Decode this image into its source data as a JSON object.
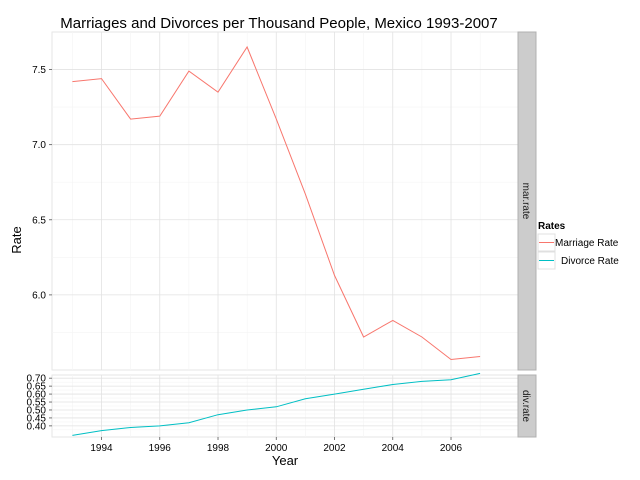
{
  "chart_data": {
    "type": "line",
    "title": "Marriages and Divorces per Thousand People, Mexico 1993-2007",
    "xlabel": "Year",
    "ylabel": "Rate",
    "x": [
      1993,
      1994,
      1995,
      1996,
      1997,
      1998,
      1999,
      2000,
      2001,
      2002,
      2003,
      2004,
      2005,
      2006,
      2007
    ],
    "x_ticks": [
      "1994",
      "1996",
      "1998",
      "2000",
      "2002",
      "2004",
      "2006"
    ],
    "xlim": [
      1992.3,
      2008.3
    ],
    "grid": true,
    "legend": {
      "title": "Rates",
      "placement": "right",
      "entries": [
        "Marriage Rate",
        "Divorce Rate"
      ]
    },
    "panels": [
      {
        "strip": "mar.rate",
        "ylim": [
          5.5,
          7.75
        ],
        "y_ticks": [
          "6.0",
          "6.5",
          "7.0",
          "7.5"
        ],
        "series": [
          {
            "name": "Marriage Rate",
            "color": "#F8766D",
            "values": [
              7.42,
              7.44,
              7.17,
              7.19,
              7.49,
              7.35,
              7.65,
              7.17,
              6.67,
              6.13,
              5.72,
              5.83,
              5.72,
              5.57,
              5.59
            ]
          }
        ]
      },
      {
        "strip": "div.rate",
        "ylim": [
          0.33,
          0.72
        ],
        "y_ticks": [
          "0.40",
          "0.45",
          "0.50",
          "0.55",
          "0.60",
          "0.65",
          "0.70"
        ],
        "series": [
          {
            "name": "Divorce Rate",
            "color": "#00BFC4",
            "values": [
              0.34,
              0.37,
              0.39,
              0.4,
              0.42,
              0.47,
              0.5,
              0.52,
              0.57,
              0.6,
              0.63,
              0.66,
              0.68,
              0.69,
              0.73
            ]
          }
        ]
      }
    ]
  }
}
